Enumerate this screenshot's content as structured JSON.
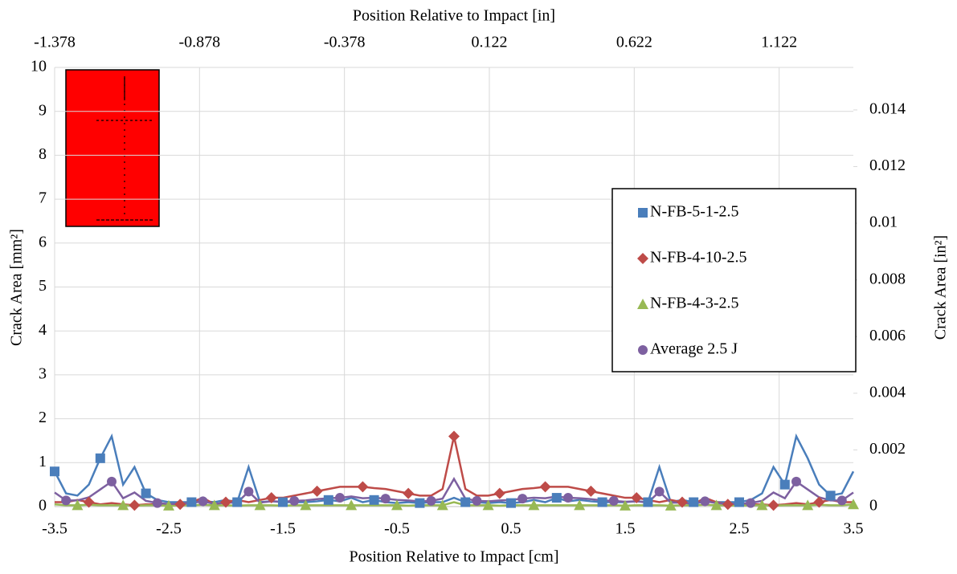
{
  "chart_data": {
    "type": "line",
    "xlabel": "Position Relative to Impact [cm]",
    "x2label": "Position Relative to Impact [in]",
    "ylabel": "Crack Area [mm²]",
    "y2label": "Crack Area [in²]",
    "xlim": [
      -3.5,
      3.5
    ],
    "xticks": [
      -3.5,
      -2.5,
      -1.5,
      -0.5,
      0.5,
      1.5,
      2.5,
      3.5
    ],
    "x2lim": [
      -1.378,
      1.378
    ],
    "x2ticks": [
      -1.378,
      -0.878,
      -0.378,
      0.122,
      0.622,
      1.122
    ],
    "ylim": [
      0,
      10
    ],
    "yticks": [
      0,
      1,
      2,
      3,
      4,
      5,
      6,
      7,
      8,
      9,
      10
    ],
    "y2lim": [
      0,
      0.0155
    ],
    "y2ticks": [
      0,
      0.002,
      0.004,
      0.006,
      0.008,
      0.01,
      0.012,
      0.014
    ],
    "grid": true,
    "x": [
      -3.5,
      -3.4,
      -3.3,
      -3.2,
      -3.1,
      -3.0,
      -2.9,
      -2.8,
      -2.7,
      -2.6,
      -2.5,
      -2.4,
      -2.3,
      -2.2,
      -2.1,
      -2.0,
      -1.9,
      -1.8,
      -1.7,
      -1.6,
      -1.5,
      -1.4,
      -1.3,
      -1.2,
      -1.1,
      -1.0,
      -0.9,
      -0.8,
      -0.7,
      -0.6,
      -0.5,
      -0.4,
      -0.3,
      -0.2,
      -0.1,
      0,
      0.1,
      0.2,
      0.3,
      0.4,
      0.5,
      0.6,
      0.7,
      0.8,
      0.9,
      1.0,
      1.1,
      1.2,
      1.3,
      1.4,
      1.5,
      1.6,
      1.7,
      1.8,
      1.9,
      2.0,
      2.1,
      2.2,
      2.3,
      2.4,
      2.5,
      2.6,
      2.7,
      2.8,
      2.9,
      3.0,
      3.1,
      3.2,
      3.3,
      3.4,
      3.5
    ],
    "series": [
      {
        "name": "N-FB-5-1-2.5",
        "color": "#4a7ebb",
        "marker": "square",
        "values": [
          0.8,
          0.3,
          0.25,
          0.5,
          1.1,
          1.6,
          0.5,
          0.9,
          0.3,
          0.15,
          0.1,
          0.1,
          0.1,
          0.12,
          0.1,
          0.15,
          0.1,
          0.9,
          0.1,
          0.12,
          0.1,
          0.1,
          0.1,
          0.12,
          0.15,
          0.12,
          0.2,
          0.1,
          0.15,
          0.1,
          0.08,
          0.1,
          0.08,
          0.1,
          0.1,
          0.2,
          0.1,
          0.1,
          0.08,
          0.1,
          0.08,
          0.1,
          0.15,
          0.1,
          0.2,
          0.12,
          0.15,
          0.12,
          0.1,
          0.1,
          0.1,
          0.12,
          0.1,
          0.9,
          0.1,
          0.15,
          0.1,
          0.12,
          0.1,
          0.1,
          0.1,
          0.15,
          0.3,
          0.9,
          0.5,
          1.6,
          1.1,
          0.5,
          0.25,
          0.3,
          0.8
        ]
      },
      {
        "name": "N-FB-4-10-2.5",
        "color": "#be4b48",
        "marker": "diamond",
        "values": [
          0.1,
          0.1,
          0.15,
          0.1,
          0.05,
          0.08,
          0.05,
          0.03,
          0.05,
          0.05,
          0.05,
          0.05,
          0.1,
          0.2,
          0.05,
          0.1,
          0.15,
          0.1,
          0.15,
          0.2,
          0.2,
          0.25,
          0.3,
          0.35,
          0.4,
          0.45,
          0.45,
          0.45,
          0.42,
          0.4,
          0.35,
          0.3,
          0.25,
          0.25,
          0.4,
          1.6,
          0.4,
          0.25,
          0.25,
          0.3,
          0.35,
          0.4,
          0.42,
          0.45,
          0.45,
          0.45,
          0.4,
          0.35,
          0.3,
          0.25,
          0.2,
          0.2,
          0.15,
          0.1,
          0.15,
          0.1,
          0.05,
          0.2,
          0.1,
          0.05,
          0.05,
          0.05,
          0.05,
          0.03,
          0.05,
          0.08,
          0.05,
          0.1,
          0.15,
          0.1,
          0.1
        ]
      },
      {
        "name": "N-FB-4-3-2.5",
        "color": "#98b954",
        "marker": "triangle",
        "values": [
          0.05,
          0.03,
          0.03,
          0.04,
          0.03,
          0.03,
          0.03,
          0.02,
          0.03,
          0.03,
          0.02,
          0.03,
          0.03,
          0.04,
          0.03,
          0.03,
          0.02,
          0.03,
          0.03,
          0.03,
          0.02,
          0.03,
          0.03,
          0.03,
          0.03,
          0.03,
          0.03,
          0.03,
          0.03,
          0.03,
          0.03,
          0.02,
          0.03,
          0.03,
          0.03,
          0.1,
          0.03,
          0.03,
          0.03,
          0.02,
          0.03,
          0.03,
          0.03,
          0.03,
          0.03,
          0.03,
          0.03,
          0.03,
          0.03,
          0.03,
          0.02,
          0.03,
          0.03,
          0.03,
          0.02,
          0.03,
          0.03,
          0.04,
          0.03,
          0.03,
          0.02,
          0.03,
          0.03,
          0.02,
          0.03,
          0.03,
          0.03,
          0.04,
          0.03,
          0.03,
          0.05
        ]
      },
      {
        "name": "Average 2.5 J",
        "color": "#7d60a0",
        "marker": "circle",
        "values": [
          0.32,
          0.14,
          0.14,
          0.21,
          0.39,
          0.57,
          0.19,
          0.32,
          0.13,
          0.08,
          0.06,
          0.06,
          0.08,
          0.12,
          0.06,
          0.09,
          0.09,
          0.34,
          0.09,
          0.12,
          0.11,
          0.13,
          0.14,
          0.17,
          0.19,
          0.2,
          0.23,
          0.19,
          0.2,
          0.18,
          0.15,
          0.14,
          0.12,
          0.13,
          0.18,
          0.63,
          0.18,
          0.13,
          0.12,
          0.14,
          0.15,
          0.18,
          0.2,
          0.19,
          0.23,
          0.2,
          0.19,
          0.17,
          0.14,
          0.13,
          0.11,
          0.12,
          0.09,
          0.34,
          0.09,
          0.09,
          0.06,
          0.12,
          0.08,
          0.06,
          0.06,
          0.08,
          0.13,
          0.32,
          0.19,
          0.57,
          0.39,
          0.21,
          0.14,
          0.14,
          0.32
        ]
      }
    ]
  }
}
